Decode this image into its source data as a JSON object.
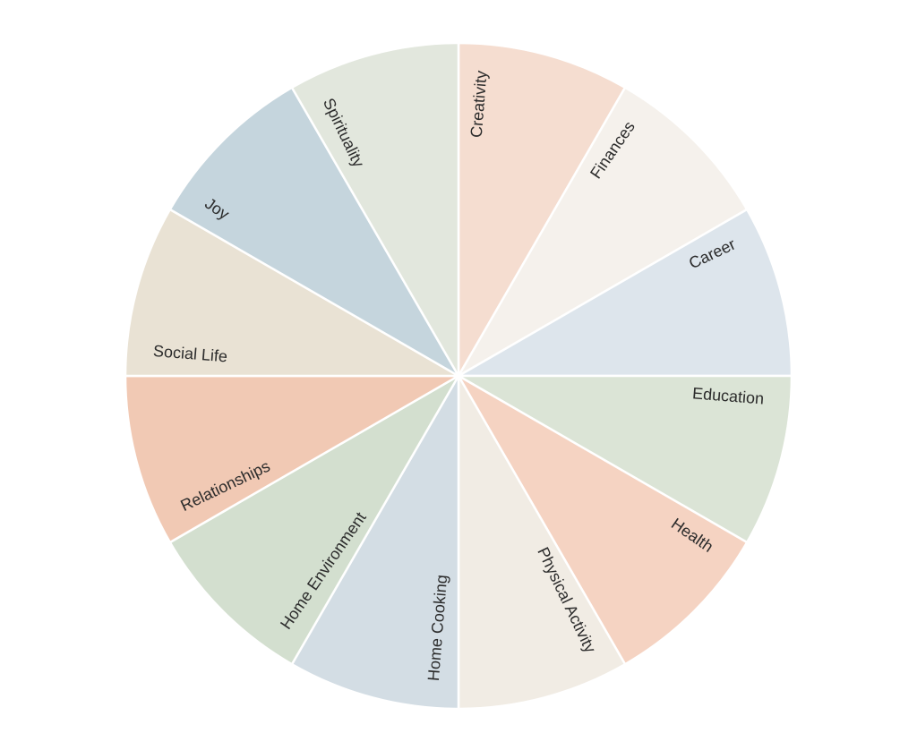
{
  "chart_data": {
    "type": "pie",
    "title": "",
    "categories": [
      "Creativity",
      "Finances",
      "Career",
      "Education",
      "Health",
      "Physical Activity",
      "Home Cooking",
      "Home Environment",
      "Relationships",
      "Social Life",
      "Joy",
      "Spirituality"
    ],
    "values": [
      1,
      1,
      1,
      1,
      1,
      1,
      1,
      1,
      1,
      1,
      1,
      1
    ],
    "colors": [
      "#f5ddd0",
      "#f5f1ec",
      "#dde5ec",
      "#dbe4d6",
      "#f5d3c2",
      "#f1ece4",
      "#d3dde4",
      "#d3dfcf",
      "#f1c9b4",
      "#e9e2d4",
      "#c5d5dd",
      "#e2e7dd"
    ],
    "legend": "none"
  }
}
